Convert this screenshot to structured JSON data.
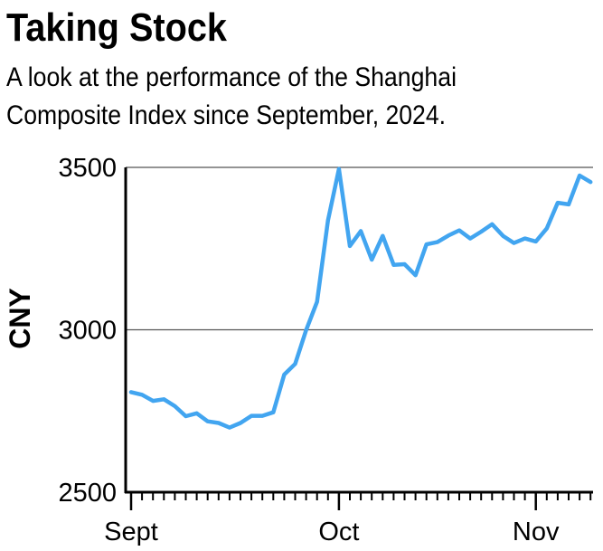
{
  "header": {
    "title": "Taking Stock",
    "subtitle_lines": [
      "A look at the performance of the Shanghai",
      "Composite Index since September, 2024."
    ]
  },
  "chart_data": {
    "type": "line",
    "title": "Taking Stock",
    "subtitle": "A look at the performance of the Shanghai Composite Index since September, 2024.",
    "ylabel": "CNY",
    "xlabel": "",
    "ylim": [
      2500,
      3500
    ],
    "yticks": [
      2500,
      3000,
      3500
    ],
    "ytick_labels": [
      "2500",
      "3000",
      "3500"
    ],
    "xtick_labels": [
      {
        "label": "Sept",
        "date": "2024-09-02"
      },
      {
        "label": "Oct",
        "date": "2024-10-08"
      },
      {
        "label": "Nov",
        "date": "2024-11-01"
      }
    ],
    "grid": "horizontal",
    "line_color": "#42a5f0",
    "x": [
      "2024-09-02",
      "2024-09-03",
      "2024-09-04",
      "2024-09-05",
      "2024-09-06",
      "2024-09-09",
      "2024-09-10",
      "2024-09-11",
      "2024-09-12",
      "2024-09-13",
      "2024-09-18",
      "2024-09-19",
      "2024-09-20",
      "2024-09-23",
      "2024-09-24",
      "2024-09-25",
      "2024-09-26",
      "2024-09-27",
      "2024-09-30",
      "2024-10-08",
      "2024-10-09",
      "2024-10-10",
      "2024-10-11",
      "2024-10-14",
      "2024-10-15",
      "2024-10-16",
      "2024-10-17",
      "2024-10-18",
      "2024-10-21",
      "2024-10-22",
      "2024-10-23",
      "2024-10-24",
      "2024-10-25",
      "2024-10-28",
      "2024-10-29",
      "2024-10-30",
      "2024-10-31",
      "2024-11-01",
      "2024-11-04",
      "2024-11-05",
      "2024-11-06",
      "2024-11-07",
      "2024-11-08"
    ],
    "values": [
      2808,
      2800,
      2781,
      2786,
      2765,
      2734,
      2743,
      2718,
      2713,
      2699,
      2713,
      2735,
      2735,
      2746,
      2862,
      2895,
      2999,
      3086,
      3337,
      3495,
      3258,
      3304,
      3216,
      3289,
      3200,
      3202,
      3168,
      3263,
      3270,
      3290,
      3306,
      3281,
      3302,
      3325,
      3289,
      3267,
      3281,
      3272,
      3312,
      3391,
      3386,
      3475,
      3455
    ]
  }
}
